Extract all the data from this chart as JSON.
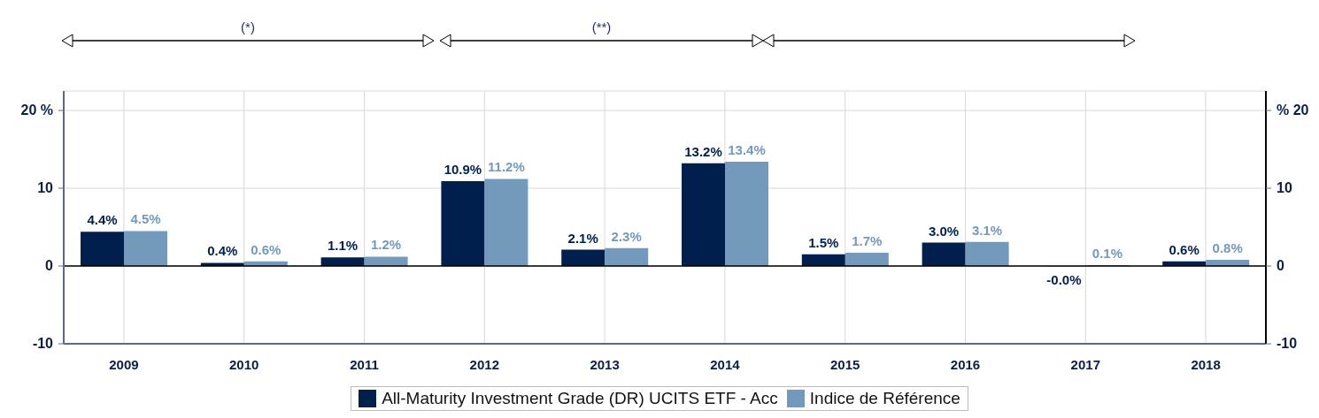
{
  "chart_data": {
    "type": "bar",
    "categories": [
      "2009",
      "2010",
      "2011",
      "2012",
      "2013",
      "2014",
      "2015",
      "2016",
      "2017",
      "2018"
    ],
    "series": [
      {
        "name": "All-Maturity Investment Grade (DR) UCITS ETF - Acc",
        "color": "#001f4d",
        "values": [
          4.4,
          0.4,
          1.1,
          10.9,
          2.1,
          13.2,
          1.5,
          3.0,
          -0.04,
          0.6
        ],
        "value_labels": [
          "4.4%",
          "0.4%",
          "1.1%",
          "10.9%",
          "2.1%",
          "13.2%",
          "1.5%",
          "3.0%",
          "-0.0%",
          "0.6%"
        ]
      },
      {
        "name": "Indice de Référence",
        "color": "#7399bd",
        "values": [
          4.5,
          0.6,
          1.2,
          11.2,
          2.3,
          13.4,
          1.7,
          3.1,
          0.1,
          0.8
        ],
        "value_labels": [
          "4.5%",
          "0.6%",
          "1.2%",
          "11.2%",
          "2.3%",
          "13.4%",
          "1.7%",
          "3.1%",
          "0.1%",
          "0.8%"
        ]
      }
    ],
    "ylim": [
      -10,
      22.5
    ],
    "yticks": [
      -10,
      0,
      10,
      {
        "value": 20,
        "label": "20 %"
      }
    ],
    "y2lim": [
      -10,
      22.5
    ],
    "y2ticks": [
      -10,
      0,
      10,
      {
        "value": 20,
        "label": "% 20"
      }
    ],
    "grid": true,
    "legend": "bottom",
    "annotations": [
      "(*)",
      "(**)"
    ]
  }
}
